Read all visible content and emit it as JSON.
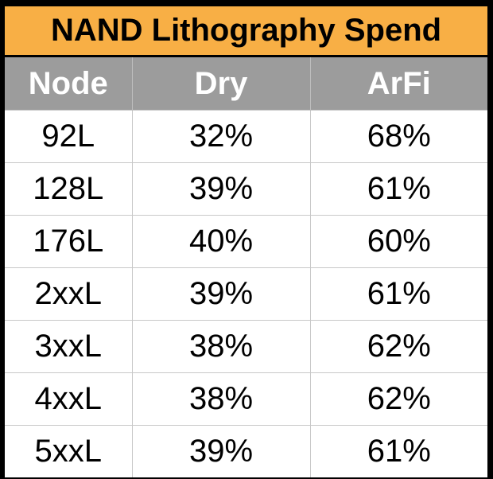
{
  "chart_data": {
    "type": "table",
    "title": "NAND Lithography Spend",
    "columns": [
      "Node",
      "Dry",
      "ArFi"
    ],
    "rows": [
      {
        "node": "92L",
        "dry": "32%",
        "arfi": "68%"
      },
      {
        "node": "128L",
        "dry": "39%",
        "arfi": "61%"
      },
      {
        "node": "176L",
        "dry": "40%",
        "arfi": "60%"
      },
      {
        "node": "2xxL",
        "dry": "39%",
        "arfi": "61%"
      },
      {
        "node": "3xxL",
        "dry": "38%",
        "arfi": "62%"
      },
      {
        "node": "4xxL",
        "dry": "38%",
        "arfi": "62%"
      },
      {
        "node": "5xxL",
        "dry": "39%",
        "arfi": "61%"
      }
    ]
  },
  "colors": {
    "title_background": "#F8AF45",
    "header_background": "#9C9C9C",
    "header_text": "#FFFFFF",
    "frame": "#000000"
  }
}
